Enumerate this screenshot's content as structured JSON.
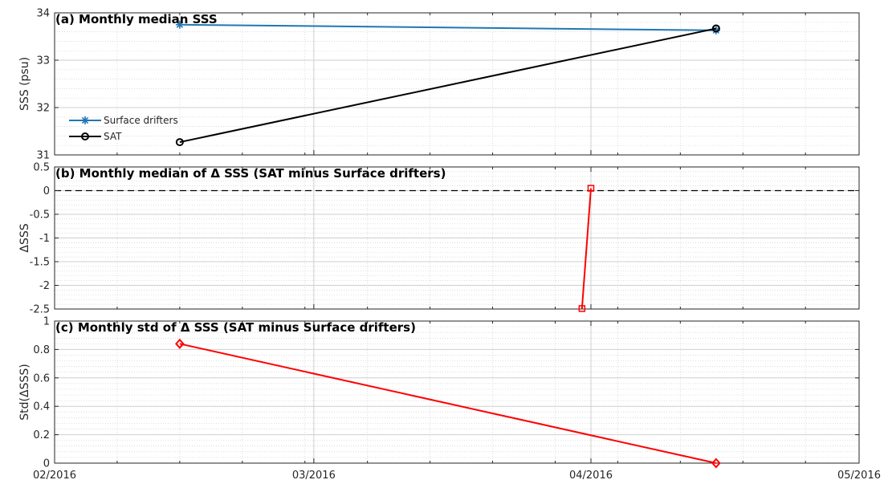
{
  "chart_data": [
    {
      "type": "line",
      "title": "(a) Monthly median SSS",
      "ylabel": "SSS (psu)",
      "xlabel": "",
      "ylim": [
        31,
        34
      ],
      "yticks": [
        "31",
        "32",
        "33",
        "34"
      ],
      "grid": true,
      "legend_position": "left",
      "series": [
        {
          "name": "Surface drifters",
          "color": "#1f77b4",
          "marker": "asterisk",
          "x": [
            "2016-02-15",
            "2016-04-15"
          ],
          "y": [
            33.75,
            33.63
          ]
        },
        {
          "name": "SAT",
          "color": "#000000",
          "marker": "circle",
          "x": [
            "2016-02-15",
            "2016-04-15"
          ],
          "y": [
            31.27,
            33.67
          ]
        }
      ]
    },
    {
      "type": "line",
      "title": "(b) Monthly median of Δ SSS (SAT minus Surface drifters)",
      "ylabel": "ΔSSS",
      "xlabel": "",
      "ylim": [
        -2.5,
        0.5
      ],
      "yticks": [
        "0.5",
        "0",
        "-0.5",
        "-1",
        "-1.5",
        "-2",
        "-2.5"
      ],
      "grid": true,
      "reference_line": {
        "y": 0,
        "style": "dashed",
        "color": "#000000"
      },
      "series": [
        {
          "color": "#ff0000",
          "marker": "square",
          "x": [
            "2016-03-31",
            "2016-04-01"
          ],
          "y": [
            -2.49,
            0.05
          ]
        }
      ]
    },
    {
      "type": "line",
      "title": "(c) Monthly std of Δ SSS (SAT minus Surface drifters)",
      "ylabel": "Std(ΔSSS)",
      "xlabel": "",
      "ylim": [
        0,
        1
      ],
      "yticks": [
        "1",
        "0.8",
        "0.6",
        "0.4",
        "0.2",
        "0"
      ],
      "grid": true,
      "series": [
        {
          "color": "#ff0000",
          "marker": "diamond",
          "x": [
            "2016-02-15",
            "2016-04-15"
          ],
          "y": [
            0.84,
            0.0
          ]
        }
      ]
    }
  ],
  "x_axis": {
    "tick_labels": [
      "02/2016",
      "03/2016",
      "04/2016",
      "05/2016"
    ],
    "tick_dates": [
      "2016-02-01",
      "2016-03-01",
      "2016-04-01",
      "2016-05-01"
    ]
  }
}
